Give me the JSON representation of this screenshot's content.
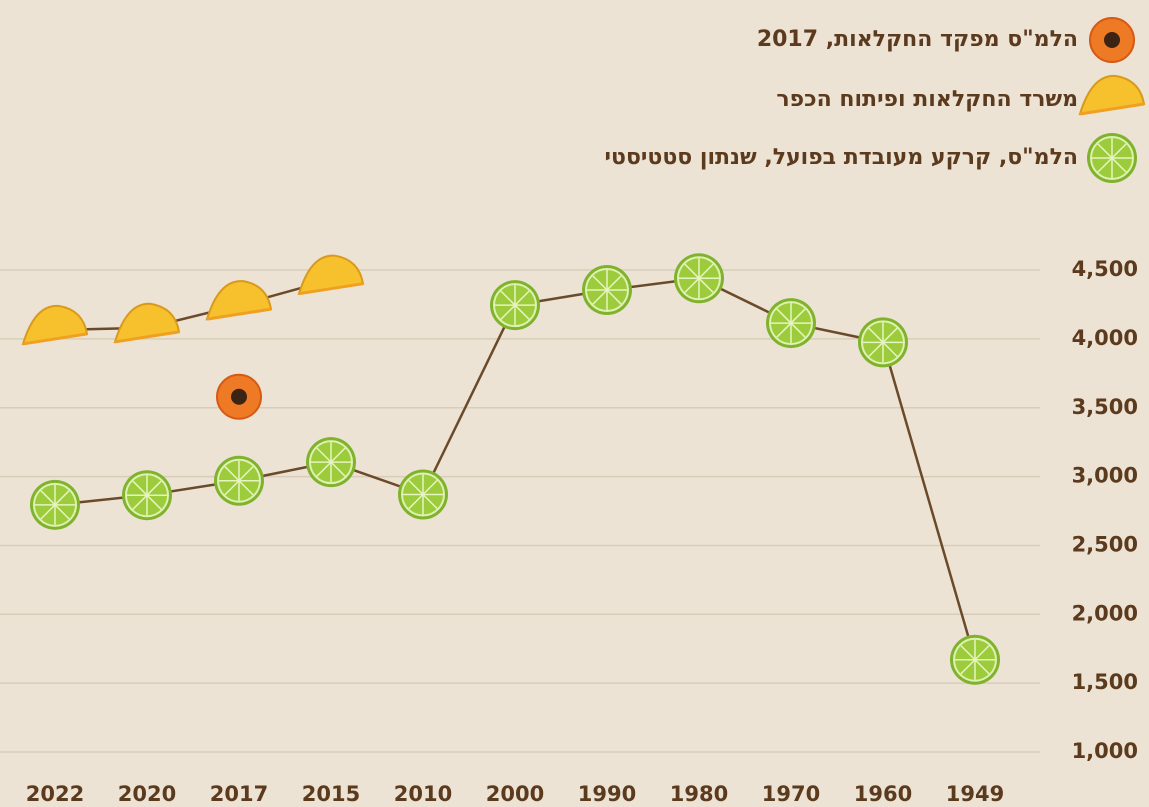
{
  "chart_data": {
    "type": "line",
    "categories": [
      "2022",
      "2020",
      "2017",
      "2015",
      "2010",
      "2000",
      "1990",
      "1980",
      "1970",
      "1960",
      "1949"
    ],
    "series": [
      {
        "name": "הלמ\"ס מפקד החקלאות, 2017",
        "color": "#ef7a26",
        "marker": "papaya",
        "values": [
          null,
          null,
          3580,
          null,
          null,
          null,
          null,
          null,
          null,
          null,
          null
        ]
      },
      {
        "name": "משרד החקלאות ופיתוח הכפר",
        "color": "#f6c12c",
        "marker": "pineapple",
        "values": [
          4065,
          4080,
          4245,
          4430,
          null,
          null,
          null,
          null,
          null,
          null,
          null
        ]
      },
      {
        "name": "הלמ\"ס, קרקע מעובדת בפועל, שנתון סטטיסטי",
        "color": "#9ccb3b",
        "marker": "lime",
        "values": [
          2795,
          2865,
          2970,
          3105,
          2870,
          4245,
          4355,
          4440,
          4115,
          3975,
          1670
        ]
      }
    ],
    "ylim": [
      1000,
      4700
    ],
    "yticks": [
      {
        "value": 1000,
        "label": "1,000"
      },
      {
        "value": 1500,
        "label": "1,500"
      },
      {
        "value": 2000,
        "label": "2,000"
      },
      {
        "value": 2500,
        "label": "2,500"
      },
      {
        "value": 3000,
        "label": "3,000"
      },
      {
        "value": 3500,
        "label": "3,500"
      },
      {
        "value": 4000,
        "label": "4,000"
      },
      {
        "value": 4500,
        "label": "4,500"
      }
    ],
    "grid": true,
    "line_color": "#6b4a2a"
  }
}
